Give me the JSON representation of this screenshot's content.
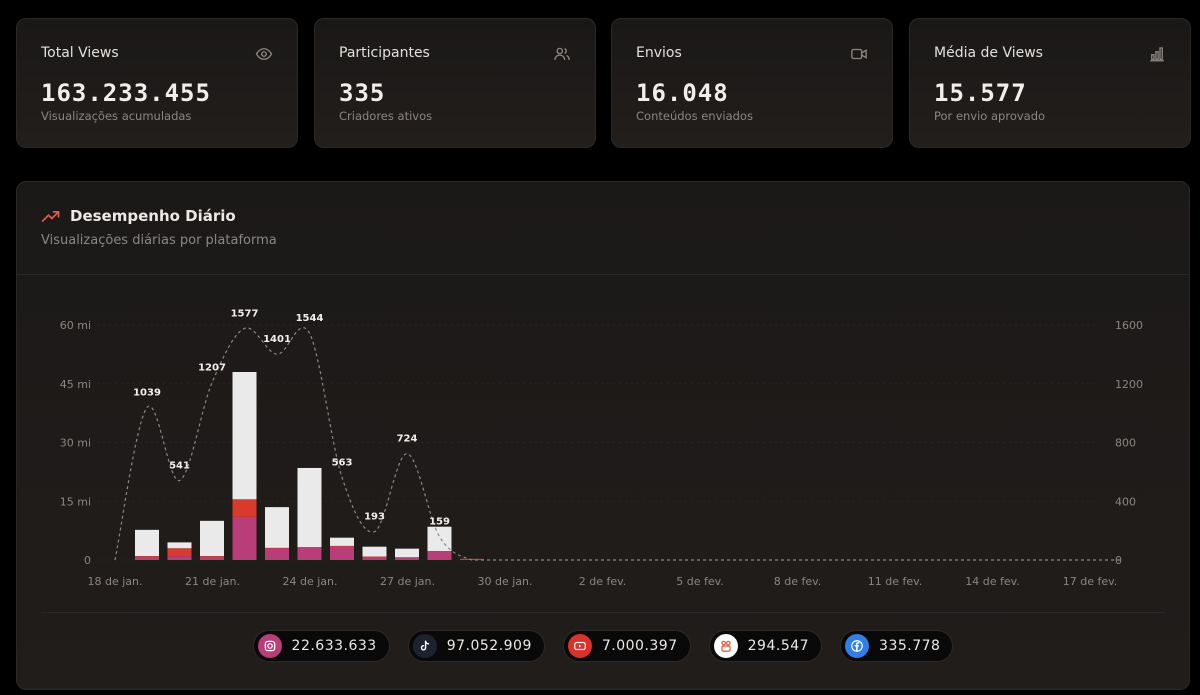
{
  "stats": [
    {
      "title": "Total Views",
      "value": "163.233.455",
      "subtitle": "Visualizações acumuladas",
      "icon": "eye-icon"
    },
    {
      "title": "Participantes",
      "value": "335",
      "subtitle": "Criadores ativos",
      "icon": "users-icon"
    },
    {
      "title": "Envios",
      "value": "16.048",
      "subtitle": "Conteúdos enviados",
      "icon": "video-icon"
    },
    {
      "title": "Média de Views",
      "value": "15.577",
      "subtitle": "Por envio aprovado",
      "icon": "bar-chart-icon"
    }
  ],
  "panel": {
    "title": "Desempenho Diário",
    "subtitle": "Visualizações diárias por plataforma",
    "icon": "trending-up-icon"
  },
  "chart_data": {
    "type": "bar",
    "stacked": true,
    "x_ticks": [
      "18 de jan.",
      "21 de jan.",
      "24 de jan.",
      "27 de jan.",
      "30 de jan.",
      "2 de fev.",
      "5 de fev.",
      "8 de fev.",
      "11 de fev.",
      "14 de fev.",
      "17 de fev."
    ],
    "categories": [
      "18 de jan.",
      "19 de jan.",
      "20 de jan.",
      "21 de jan.",
      "22 de jan.",
      "23 de jan.",
      "24 de jan.",
      "25 de jan.",
      "26 de jan.",
      "27 de jan.",
      "28 de jan.",
      "29 de jan.",
      "30 de jan.",
      "31 de jan.",
      "1 de fev.",
      "2 de fev.",
      "3 de fev.",
      "4 de fev.",
      "5 de fev.",
      "6 de fev.",
      "7 de fev.",
      "8 de fev.",
      "9 de fev.",
      "10 de fev.",
      "11 de fev.",
      "12 de fev.",
      "13 de fev.",
      "14 de fev.",
      "15 de fev.",
      "16 de fev.",
      "17 de fev."
    ],
    "y_left": {
      "ticks": [
        "0",
        "15 mi",
        "30 mi",
        "45 mi",
        "60 mi"
      ],
      "range": [
        0,
        60
      ]
    },
    "y_right": {
      "ticks": [
        "0",
        "400",
        "800",
        "1200",
        "1600"
      ],
      "range": [
        0,
        1600
      ]
    },
    "series": [
      {
        "platform": "instagram",
        "color": "#b83d78",
        "values": [
          0.8,
          1.0,
          0.8,
          11.0,
          3.0,
          3.2,
          3.5,
          0.8,
          0.6,
          2.2,
          0.2,
          0,
          0,
          0,
          0,
          0,
          0,
          0,
          0,
          0,
          0,
          0,
          0,
          0,
          0,
          0,
          0,
          0,
          0,
          0,
          0
        ]
      },
      {
        "platform": "youtube",
        "color": "#d83a2e",
        "values": [
          0.2,
          2.0,
          0.2,
          4.5,
          0.1,
          0.1,
          0.1,
          0.1,
          0.1,
          0.1,
          0.1,
          0,
          0,
          0,
          0,
          0,
          0,
          0,
          0,
          0,
          0,
          0,
          0,
          0,
          0,
          0,
          0,
          0,
          0,
          0,
          0
        ]
      },
      {
        "platform": "tiktok",
        "color": "#eaeaea",
        "values": [
          6.7,
          1.5,
          9.0,
          32.5,
          10.4,
          20.2,
          2.1,
          2.5,
          2.2,
          6.2,
          0,
          0,
          0,
          0,
          0,
          0,
          0,
          0,
          0,
          0,
          0,
          0,
          0,
          0,
          0,
          0,
          0,
          0,
          0,
          0,
          0
        ]
      }
    ],
    "line": {
      "axis": "right",
      "values": [
        1039,
        541,
        1207,
        1577,
        1401,
        1544,
        563,
        193,
        724,
        159,
        0,
        0,
        0,
        0,
        0,
        0,
        0,
        0,
        0,
        0,
        0,
        0,
        0,
        0,
        0,
        0,
        0,
        0,
        0,
        0,
        0
      ],
      "labels": [
        "1039",
        "541",
        "1207",
        "1577",
        "1401",
        "1544",
        "563",
        "193",
        "724",
        "159"
      ]
    }
  },
  "legend": [
    {
      "platform": "instagram",
      "icon": "instagram-icon",
      "value": "22.633.633",
      "color": "#b83d78"
    },
    {
      "platform": "tiktok",
      "icon": "tiktok-icon",
      "value": "97.052.909",
      "color": "#1c2230"
    },
    {
      "platform": "youtube",
      "icon": "youtube-icon",
      "value": "7.000.397",
      "color": "#d8322a"
    },
    {
      "platform": "kwai",
      "icon": "kwai-icon",
      "value": "294.547",
      "color": "#ffffff"
    },
    {
      "platform": "facebook",
      "icon": "facebook-icon",
      "value": "335.778",
      "color": "#2f7fe6"
    }
  ]
}
